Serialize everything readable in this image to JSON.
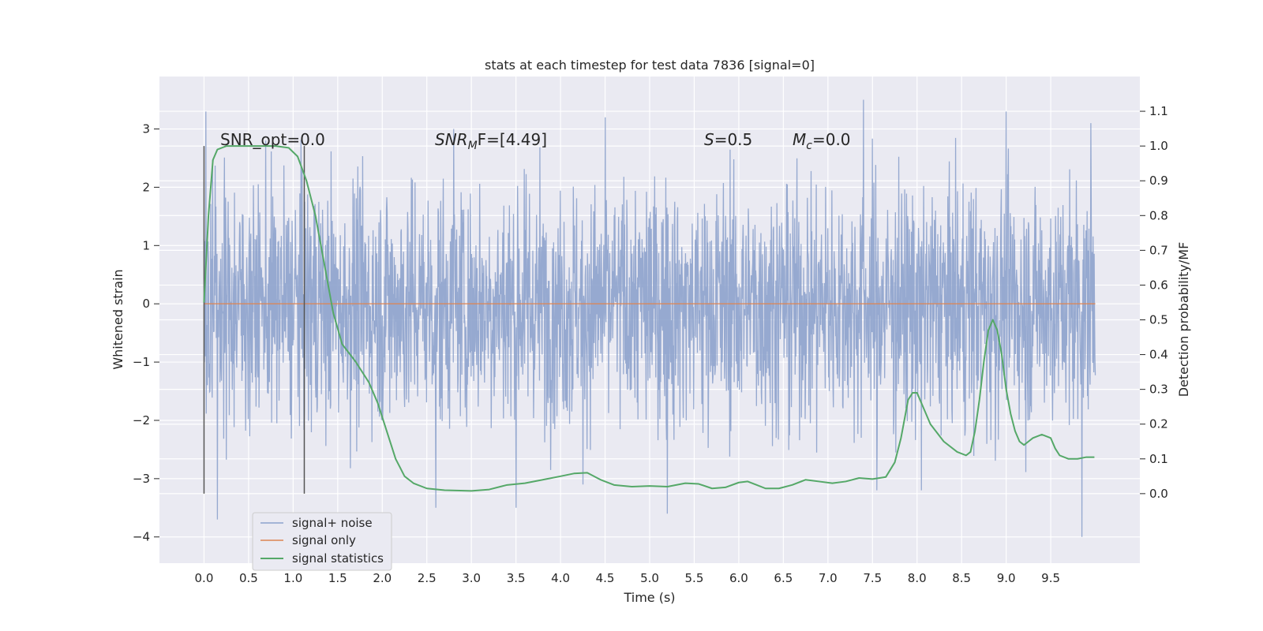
{
  "chart_data": {
    "type": "line",
    "title": "stats at each timestep for test data 7836 [signal=0]",
    "xlabel": "Time (s)",
    "ylabel": "Whitened strain",
    "y2label": "Detection probability/MF",
    "xlim": [
      -0.5,
      10.5
    ],
    "ylim": [
      -4.45,
      3.9
    ],
    "y2lim": [
      -0.2,
      1.2
    ],
    "x_ticks": [
      "0.0",
      "0.5",
      "1.0",
      "1.5",
      "2.0",
      "2.5",
      "3.0",
      "3.5",
      "4.0",
      "4.5",
      "5.0",
      "5.5",
      "6.0",
      "6.5",
      "7.0",
      "7.5",
      "8.0",
      "8.5",
      "9.0",
      "9.5"
    ],
    "y_ticks": [
      "3",
      "2",
      "1",
      "0",
      "−1",
      "−2",
      "−3",
      "−4"
    ],
    "y2_ticks": [
      "1.1",
      "1.0",
      "0.9",
      "0.8",
      "0.7",
      "0.6",
      "0.5",
      "0.4",
      "0.3",
      "0.2",
      "0.1",
      "0.0"
    ],
    "grid": true,
    "legend_position": "lower-left",
    "colors": {
      "noise": "#8da2cc",
      "signal": "#dd8452",
      "stats": "#55a868",
      "marker": "#555555",
      "background": "#eaeaf2",
      "grid": "#ffffff"
    },
    "annotations": {
      "snr_opt": "SNR_opt=0.0",
      "snr_mf_base": "SNR",
      "snr_mf_sub": "M",
      "snr_mf_rest": "F=[4.49]",
      "s_var": "S",
      "s_rest": "=0.5",
      "mc_var": "M",
      "mc_sub": "c",
      "mc_rest": "=0.0"
    },
    "marker_lines_x": [
      0.0,
      1.125
    ],
    "series": [
      {
        "name": "signal+ noise",
        "kind": "noise",
        "x_start": 0.0,
        "x_end": 10.0,
        "typical_abs": 1.5,
        "extreme_points": [
          [
            0.02,
            3.3
          ],
          [
            0.15,
            -3.7
          ],
          [
            1.1,
            2.3
          ],
          [
            2.6,
            -3.5
          ],
          [
            2.8,
            3.0
          ],
          [
            3.5,
            -3.5
          ],
          [
            4.25,
            -3.1
          ],
          [
            4.5,
            3.2
          ],
          [
            5.2,
            -3.6
          ],
          [
            7.4,
            3.5
          ],
          [
            7.55,
            -3.2
          ],
          [
            8.05,
            -3.2
          ],
          [
            9.0,
            3.3
          ],
          [
            9.85,
            -4.0
          ],
          [
            9.95,
            3.1
          ]
        ]
      },
      {
        "name": "signal only",
        "kind": "signal",
        "x": [
          0.0,
          10.0
        ],
        "y": [
          0.0,
          0.0
        ]
      },
      {
        "name": "signal statistics",
        "kind": "stats",
        "x": [
          0.0,
          0.05,
          0.1,
          0.15,
          0.25,
          0.4,
          0.6,
          0.8,
          0.95,
          1.05,
          1.15,
          1.25,
          1.35,
          1.45,
          1.55,
          1.7,
          1.85,
          1.95,
          2.05,
          2.15,
          2.25,
          2.35,
          2.5,
          2.7,
          3.0,
          3.2,
          3.4,
          3.6,
          3.8,
          4.0,
          4.15,
          4.3,
          4.45,
          4.6,
          4.8,
          5.0,
          5.2,
          5.4,
          5.55,
          5.7,
          5.85,
          6.0,
          6.1,
          6.2,
          6.3,
          6.45,
          6.6,
          6.75,
          6.9,
          7.05,
          7.2,
          7.35,
          7.5,
          7.65,
          7.75,
          7.82,
          7.9,
          7.95,
          8.0,
          8.05,
          8.15,
          8.3,
          8.45,
          8.55,
          8.6,
          8.65,
          8.7,
          8.75,
          8.8,
          8.85,
          8.9,
          8.95,
          9.0,
          9.05,
          9.1,
          9.15,
          9.2,
          9.25,
          9.3,
          9.4,
          9.5,
          9.55,
          9.6,
          9.7,
          9.8,
          9.9,
          9.99
        ],
        "y": [
          0.55,
          0.8,
          0.96,
          0.99,
          1.0,
          1.0,
          1.0,
          1.0,
          0.995,
          0.97,
          0.9,
          0.8,
          0.66,
          0.52,
          0.43,
          0.38,
          0.32,
          0.26,
          0.18,
          0.1,
          0.05,
          0.03,
          0.015,
          0.01,
          0.008,
          0.012,
          0.025,
          0.03,
          0.04,
          0.05,
          0.058,
          0.06,
          0.04,
          0.025,
          0.02,
          0.022,
          0.02,
          0.03,
          0.028,
          0.015,
          0.018,
          0.032,
          0.035,
          0.025,
          0.015,
          0.015,
          0.025,
          0.04,
          0.035,
          0.03,
          0.035,
          0.045,
          0.042,
          0.048,
          0.09,
          0.16,
          0.27,
          0.29,
          0.29,
          0.26,
          0.2,
          0.15,
          0.12,
          0.11,
          0.12,
          0.18,
          0.27,
          0.38,
          0.47,
          0.5,
          0.47,
          0.4,
          0.3,
          0.23,
          0.18,
          0.15,
          0.14,
          0.15,
          0.16,
          0.17,
          0.16,
          0.13,
          0.11,
          0.1,
          0.1,
          0.105,
          0.105
        ]
      }
    ]
  }
}
